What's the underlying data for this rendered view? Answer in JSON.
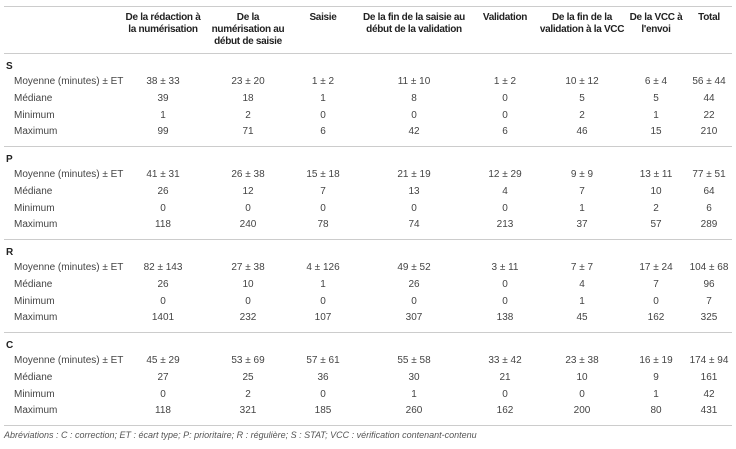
{
  "headers": [
    "",
    "De la rédaction à la numérisation",
    "De la numérisation au début de saisie",
    "Saisie",
    "De la fin de la saisie au début de la validation",
    "Validation",
    "De la fin de la validation à la VCC",
    "De la VCC à l'envoi",
    "Total"
  ],
  "row_labels": [
    "Moyenne (minutes) ± ET",
    "Médiane",
    "Minimum",
    "Maximum"
  ],
  "sections": [
    {
      "label": "S",
      "rows": [
        [
          "38 ± 33",
          "23 ± 20",
          "1 ± 2",
          "11 ± 10",
          "1 ± 2",
          "10 ± 12",
          "6 ± 4",
          "56 ± 44"
        ],
        [
          "39",
          "18",
          "1",
          "8",
          "0",
          "5",
          "5",
          "44"
        ],
        [
          "1",
          "2",
          "0",
          "0",
          "0",
          "2",
          "1",
          "22"
        ],
        [
          "99",
          "71",
          "6",
          "42",
          "6",
          "46",
          "15",
          "210"
        ]
      ]
    },
    {
      "label": "P",
      "rows": [
        [
          "41 ± 31",
          "26 ± 38",
          "15 ± 18",
          "21 ± 19",
          "12 ± 29",
          "9 ± 9",
          "13 ± 11",
          "77 ± 51"
        ],
        [
          "26",
          "12",
          "7",
          "13",
          "4",
          "7",
          "10",
          "64"
        ],
        [
          "0",
          "0",
          "0",
          "0",
          "0",
          "1",
          "2",
          "6"
        ],
        [
          "118",
          "240",
          "78",
          "74",
          "213",
          "37",
          "57",
          "289"
        ]
      ]
    },
    {
      "label": "R",
      "rows": [
        [
          "82 ± 143",
          "27 ± 38",
          "4 ± 126",
          "49 ± 52",
          "3 ± 11",
          "7 ± 7",
          "17 ± 24",
          "104 ± 68"
        ],
        [
          "26",
          "10",
          "1",
          "26",
          "0",
          "4",
          "7",
          "96"
        ],
        [
          "0",
          "0",
          "0",
          "0",
          "0",
          "1",
          "0",
          "7"
        ],
        [
          "1401",
          "232",
          "107",
          "307",
          "138",
          "45",
          "162",
          "325"
        ]
      ]
    },
    {
      "label": "C",
      "rows": [
        [
          "45 ± 29",
          "53 ± 69",
          "57 ± 61",
          "55 ± 58",
          "33 ± 42",
          "23 ± 38",
          "16 ± 19",
          "174 ± 94"
        ],
        [
          "27",
          "25",
          "36",
          "30",
          "21",
          "10",
          "9",
          "161"
        ],
        [
          "0",
          "2",
          "0",
          "1",
          "0",
          "0",
          "1",
          "42"
        ],
        [
          "118",
          "321",
          "185",
          "260",
          "162",
          "200",
          "80",
          "431"
        ]
      ]
    }
  ],
  "footnote": "Abréviations : C : correction; ET : écart type; P: prioritaire; R : régulière; S : STAT; VCC : vérification contenant-contenu"
}
